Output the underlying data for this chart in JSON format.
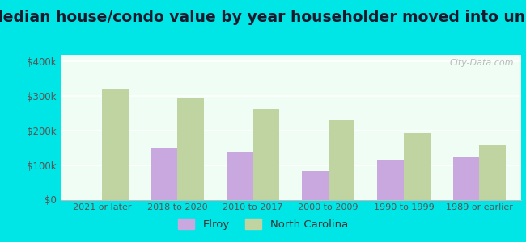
{
  "title": "Median house/condo value by year householder moved into unit",
  "categories": [
    "2021 or later",
    "2018 to 2020",
    "2010 to 2017",
    "2000 to 2009",
    "1990 to 1999",
    "1989 or earlier"
  ],
  "elroy_values": [
    null,
    150000,
    140000,
    82000,
    115000,
    122000
  ],
  "nc_values": [
    320000,
    295000,
    262000,
    230000,
    192000,
    158000
  ],
  "elroy_color": "#c9a8e0",
  "nc_color": "#bfd4a0",
  "plot_bg_top": "#e8f8f0",
  "plot_bg_bottom": "#f5fff8",
  "outer_bg_color": "#00e5e5",
  "ylim": [
    0,
    420000
  ],
  "yticks": [
    0,
    100000,
    200000,
    300000,
    400000
  ],
  "ytick_labels": [
    "$0",
    "$100k",
    "$200k",
    "$300k",
    "$400k"
  ],
  "legend_labels": [
    "Elroy",
    "North Carolina"
  ],
  "watermark": "City-Data.com",
  "bar_width": 0.35,
  "title_fontsize": 13.5
}
